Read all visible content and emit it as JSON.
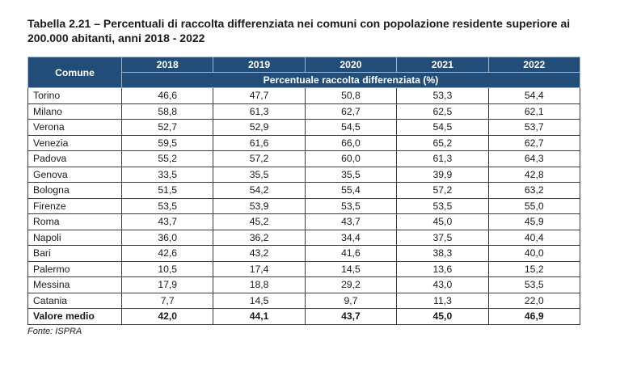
{
  "title": "Tabella 2.21 – Percentuali di raccolta differenziata nei comuni con popolazione residente superiore ai 200.000 abitanti, anni 2018 - 2022",
  "table": {
    "comune_header": "Comune",
    "years": [
      "2018",
      "2019",
      "2020",
      "2021",
      "2022"
    ],
    "subheader": "Percentuale raccolta differenziata (%)",
    "rows": [
      {
        "name": "Torino",
        "values": [
          "46,6",
          "47,7",
          "50,8",
          "53,3",
          "54,4"
        ]
      },
      {
        "name": "Milano",
        "values": [
          "58,8",
          "61,3",
          "62,7",
          "62,5",
          "62,1"
        ]
      },
      {
        "name": "Verona",
        "values": [
          "52,7",
          "52,9",
          "54,5",
          "54,5",
          "53,7"
        ]
      },
      {
        "name": "Venezia",
        "values": [
          "59,5",
          "61,6",
          "66,0",
          "65,2",
          "62,7"
        ]
      },
      {
        "name": "Padova",
        "values": [
          "55,2",
          "57,2",
          "60,0",
          "61,3",
          "64,3"
        ]
      },
      {
        "name": "Genova",
        "values": [
          "33,5",
          "35,5",
          "35,5",
          "39,9",
          "42,8"
        ]
      },
      {
        "name": "Bologna",
        "values": [
          "51,5",
          "54,2",
          "55,4",
          "57,2",
          "63,2"
        ]
      },
      {
        "name": "Firenze",
        "values": [
          "53,5",
          "53,9",
          "53,5",
          "53,5",
          "55,0"
        ]
      },
      {
        "name": "Roma",
        "values": [
          "43,7",
          "45,2",
          "43,7",
          "45,0",
          "45,9"
        ]
      },
      {
        "name": "Napoli",
        "values": [
          "36,0",
          "36,2",
          "34,4",
          "37,5",
          "40,4"
        ]
      },
      {
        "name": "Bari",
        "values": [
          "42,6",
          "43,2",
          "41,6",
          "38,3",
          "40,0"
        ]
      },
      {
        "name": "Palermo",
        "values": [
          "10,5",
          "17,4",
          "14,5",
          "13,6",
          "15,2"
        ]
      },
      {
        "name": "Messina",
        "values": [
          "17,9",
          "18,8",
          "29,2",
          "43,0",
          "53,5"
        ]
      },
      {
        "name": "Catania",
        "values": [
          "7,7",
          "14,5",
          "9,7",
          "11,3",
          "22,0"
        ]
      }
    ],
    "average": {
      "name": "Valore medio",
      "values": [
        "42,0",
        "44,1",
        "43,7",
        "45,0",
        "46,9"
      ]
    }
  },
  "source": "Fonte: ISPRA",
  "colors": {
    "header_bg": "#234d79",
    "header_text": "#ffffff",
    "grid": "#3a3a3a"
  }
}
